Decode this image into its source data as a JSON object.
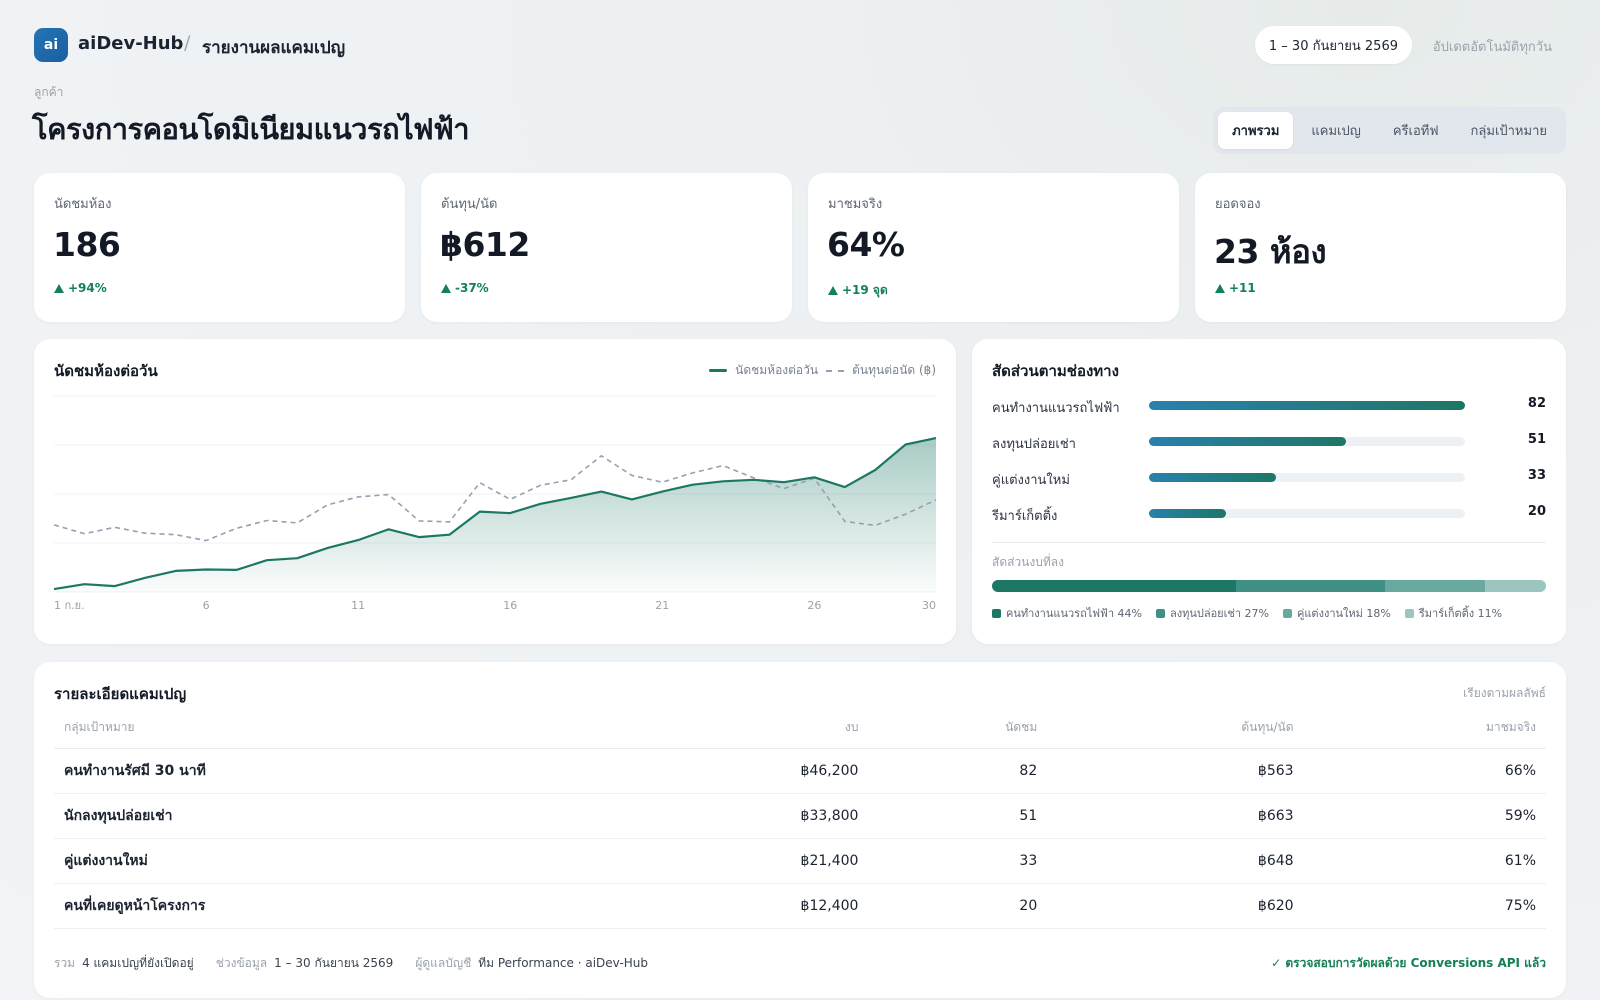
{
  "header": {
    "logo_text": "ai",
    "brand": "aiDev-Hub",
    "separator": "/",
    "page": "รายงานผลแคมเปญ",
    "date_range": "1 – 30 กันยายน 2569",
    "auto_update": "อัปเดตอัตโนมัติทุกวัน"
  },
  "client_label": "ลูกค้า",
  "title": "โครงการคอนโดมิเนียมแนวรถไฟฟ้า",
  "tabs": [
    {
      "label": "ภาพรวม",
      "active": true
    },
    {
      "label": "แคมเปญ",
      "active": false
    },
    {
      "label": "ครีเอทีฟ",
      "active": false
    },
    {
      "label": "กลุ่มเป้าหมาย",
      "active": false
    }
  ],
  "kpis": [
    {
      "label": "นัดชมห้อง",
      "value": "186",
      "delta": "+94%"
    },
    {
      "label": "ต้นทุน/นัด",
      "value": "฿612",
      "delta": "-37%"
    },
    {
      "label": "มาชมจริง",
      "value": "64%",
      "delta": "+19 จุด"
    },
    {
      "label": "ยอดจอง",
      "value": "23 ห้อง",
      "delta": "+11"
    }
  ],
  "trend": {
    "title": "นัดชมห้องต่อวัน",
    "legend_solid": "นัดชมห้องต่อวัน",
    "legend_dashed": "ต้นทุนต่อนัด (฿)"
  },
  "chart_data": {
    "type": "area",
    "x": [
      1,
      2,
      3,
      4,
      5,
      6,
      7,
      8,
      9,
      10,
      11,
      12,
      13,
      14,
      15,
      16,
      17,
      18,
      19,
      20,
      21,
      22,
      23,
      24,
      25,
      26,
      27,
      28,
      29,
      30
    ],
    "x_tick_labels": [
      "1 ก.ย.",
      "6",
      "11",
      "16",
      "21",
      "26",
      "30"
    ],
    "x_tick_positions": [
      1,
      6,
      11,
      16,
      21,
      26,
      30
    ],
    "series": [
      {
        "name": "นัดชมห้องต่อวัน",
        "style": "solid-area",
        "color": "#1c7865",
        "values": [
          0.6,
          1.6,
          1.2,
          2.9,
          4.3,
          4.6,
          4.5,
          6.5,
          6.9,
          9.0,
          10.6,
          12.8,
          11.2,
          11.7,
          16.4,
          16.1,
          18.0,
          19.2,
          20.5,
          18.9,
          20.5,
          21.9,
          22.6,
          22.9,
          22.4,
          23.4,
          21.4,
          24.9,
          30.1,
          31.4
        ]
      },
      {
        "name": "ต้นทุนต่อนัด (฿)",
        "style": "dashed",
        "color": "#96a0b0",
        "values": [
          13.7,
          11.9,
          13.2,
          12.0,
          11.7,
          10.5,
          13.0,
          14.6,
          14.1,
          17.8,
          19.4,
          19.9,
          14.5,
          14.3,
          22.3,
          18.9,
          21.8,
          22.9,
          27.8,
          23.8,
          22.4,
          24.3,
          25.8,
          23.3,
          21.1,
          23.2,
          14.4,
          13.6,
          15.9,
          18.8
        ]
      }
    ],
    "ylim": [
      0,
      40
    ],
    "grid": true
  },
  "channels": {
    "title": "สัดส่วนตามช่องทาง",
    "rows": [
      {
        "label": "คนทำงานแนวรถไฟฟ้า",
        "value": 82
      },
      {
        "label": "ลงทุนปล่อยเช่า",
        "value": 51
      },
      {
        "label": "คู่แต่งงานใหม่",
        "value": 33
      },
      {
        "label": "รีมาร์เก็ตติ้ง",
        "value": 20
      }
    ],
    "max": 82,
    "share_title": "สัดส่วนงบที่ลง",
    "share": [
      {
        "label": "คนทำงานแนวรถไฟฟ้า 44%",
        "pct": 44,
        "color": "#1c7865"
      },
      {
        "label": "ลงทุนปล่อยเช่า 27%",
        "pct": 27,
        "color": "#3f8f84"
      },
      {
        "label": "คู่แต่งงานใหม่ 18%",
        "pct": 18,
        "color": "#6aa9a0"
      },
      {
        "label": "รีมาร์เก็ตติ้ง 11%",
        "pct": 11,
        "color": "#9bc6bf"
      }
    ]
  },
  "table": {
    "title": "รายละเอียดแคมเปญ",
    "sort_note": "เรียงตามผลลัพธ์",
    "headers": [
      "กลุ่มเป้าหมาย",
      "งบ",
      "นัดชม",
      "ต้นทุน/นัด",
      "มาชมจริง"
    ],
    "rows": [
      [
        "คนทำงานรัศมี 30 นาที",
        "฿46,200",
        "82",
        "฿563",
        "66%"
      ],
      [
        "นักลงทุนปล่อยเช่า",
        "฿33,800",
        "51",
        "฿663",
        "59%"
      ],
      [
        "คู่แต่งงานใหม่",
        "฿21,400",
        "33",
        "฿648",
        "61%"
      ],
      [
        "คนที่เคยดูหน้าโครงการ",
        "฿12,400",
        "20",
        "฿620",
        "75%"
      ]
    ],
    "footer": {
      "total_k": "รวม",
      "total_v": "4 แคมเปญที่ยังเปิดอยู่",
      "range_k": "ช่วงข้อมูล",
      "range_v": "1 – 30 กันยายน 2569",
      "owner_k": "ผู้ดูแลบัญชี",
      "owner_v": "ทีม Performance · aiDev-Hub",
      "verified": "✓ ตรวจสอบการวัดผลด้วย Conversions API แล้ว"
    }
  }
}
